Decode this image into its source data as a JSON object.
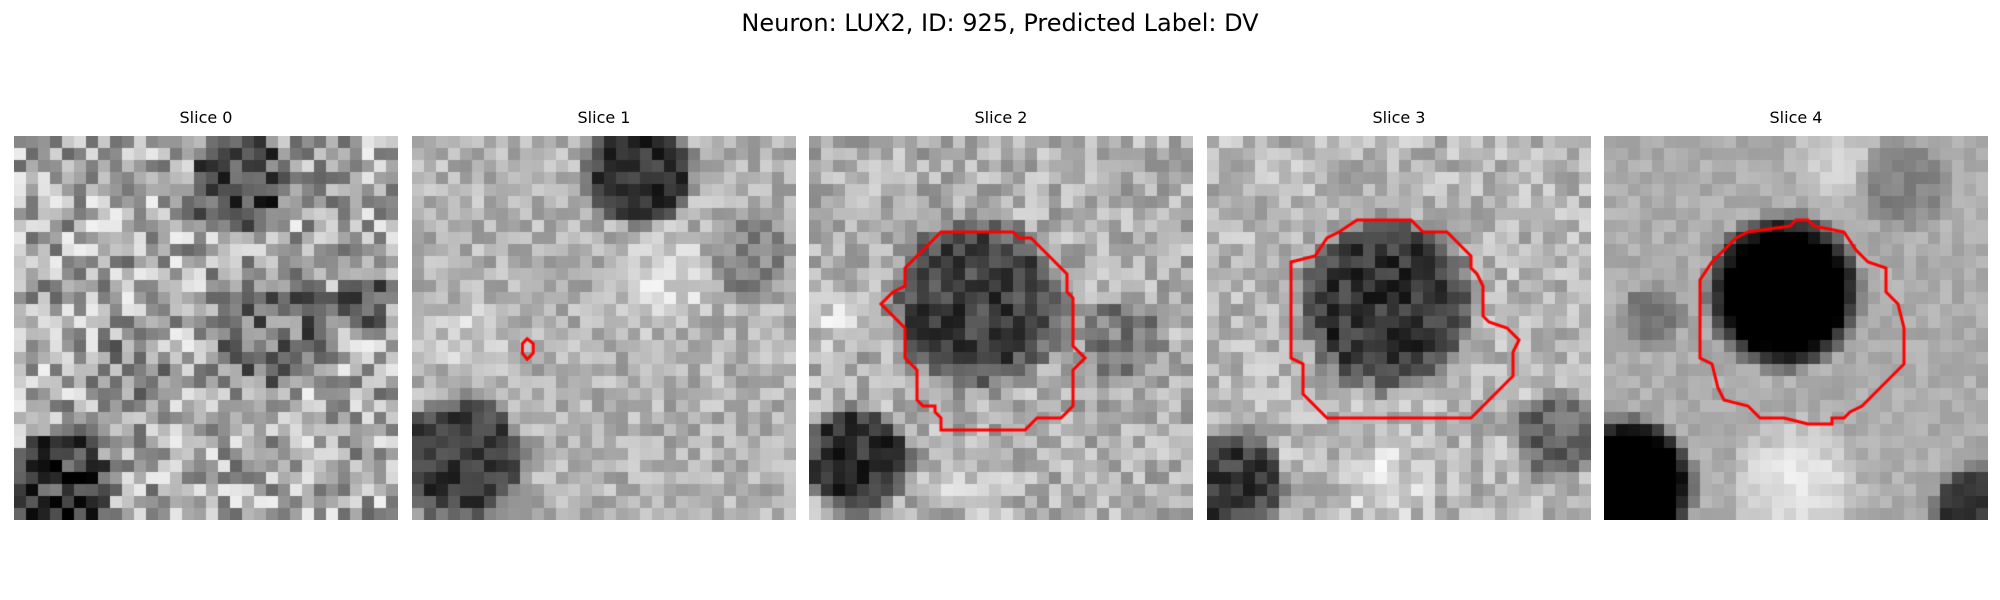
{
  "figure": {
    "title": "Neuron: LUX2, ID: 925, Predicted Label: DV",
    "contour_color": "#ff0000"
  },
  "panels": [
    {
      "title": "Slice 0"
    },
    {
      "title": "Slice 1"
    },
    {
      "title": "Slice 2"
    },
    {
      "title": "Slice 3"
    },
    {
      "title": "Slice 4"
    }
  ]
}
